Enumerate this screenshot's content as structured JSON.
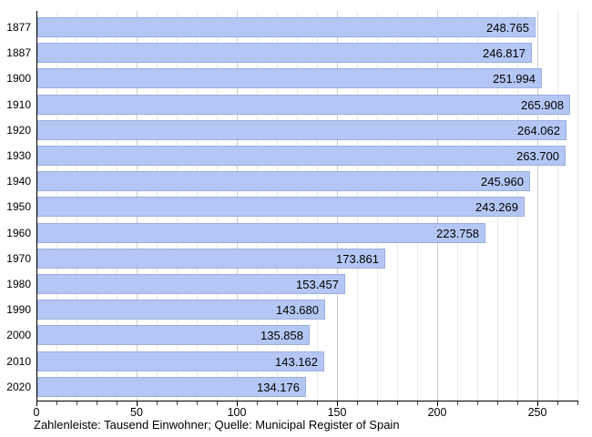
{
  "chart_data": {
    "type": "bar",
    "orientation": "horizontal",
    "title": "",
    "xlabel": "",
    "ylabel": "",
    "categories": [
      "1877",
      "1887",
      "1900",
      "1910",
      "1920",
      "1930",
      "1940",
      "1950",
      "1960",
      "1970",
      "1980",
      "1990",
      "2000",
      "2010",
      "2020"
    ],
    "values": [
      248.765,
      246.817,
      251.994,
      265.908,
      264.062,
      263.7,
      245.96,
      243.269,
      223.758,
      173.861,
      153.457,
      143.68,
      135.858,
      143.162,
      134.176
    ],
    "value_labels": [
      "248.765",
      "246.817",
      "251.994",
      "265.908",
      "264.062",
      "263.700",
      "245.960",
      "243.269",
      "223.758",
      "173.861",
      "153.457",
      "143.680",
      "135.858",
      "143.162",
      "134.176"
    ],
    "xlim": [
      0,
      270
    ],
    "x_major_tick_step": 50,
    "x_minor_tick_step": 10,
    "x_tick_labels": [
      "0",
      "50",
      "100",
      "150",
      "200",
      "250"
    ],
    "grid": true,
    "legend": "none",
    "caption": "Zahlenleiste: Tausend Einwohner; Quelle: Municipal Register of Spain",
    "colors": {
      "bar_fill": "#b4c7f4",
      "bar_border": "#9cade0",
      "grid_minor": "#e6ece6",
      "grid_major": "#c6ccc6",
      "axis": "#000000",
      "text": "#000000",
      "background": "#ffffff"
    }
  }
}
